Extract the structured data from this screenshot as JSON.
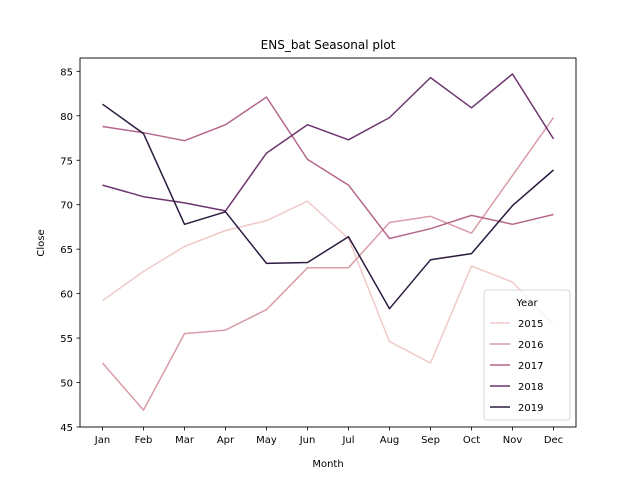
{
  "chart_data": {
    "type": "line",
    "title": "ENS_bat Seasonal plot",
    "xlabel": "Month",
    "ylabel": "Close",
    "categories": [
      "Jan",
      "Feb",
      "Mar",
      "Apr",
      "May",
      "Jun",
      "Jul",
      "Aug",
      "Sep",
      "Oct",
      "Nov",
      "Dec"
    ],
    "ylim": [
      45,
      86.5
    ],
    "yticks": [
      45,
      50,
      55,
      60,
      65,
      70,
      75,
      80,
      85
    ],
    "grid": false,
    "legend": {
      "title": "Year",
      "placement": "lower-right"
    },
    "series": [
      {
        "name": "2015",
        "color": "#efcac8",
        "values": [
          59.2,
          62.5,
          65.3,
          67.1,
          68.2,
          70.4,
          66.2,
          54.6,
          52.2,
          63.1,
          61.3,
          56.5
        ]
      },
      {
        "name": "2016",
        "color": "#d99ca7",
        "values": [
          52.2,
          46.9,
          55.5,
          55.9,
          58.2,
          62.9,
          62.9,
          68.0,
          68.7,
          66.8,
          73.3,
          79.8
        ]
      },
      {
        "name": "2017",
        "color": "#b5678c",
        "values": [
          78.8,
          78.1,
          77.2,
          79.0,
          82.1,
          75.1,
          72.2,
          66.2,
          67.3,
          68.8,
          67.8,
          68.9
        ]
      },
      {
        "name": "2018",
        "color": "#6e3670",
        "values": [
          72.2,
          70.9,
          70.2,
          69.3,
          75.8,
          79.0,
          77.3,
          79.8,
          84.3,
          80.9,
          84.7,
          77.4
        ]
      },
      {
        "name": "2019",
        "color": "#2b1b3e",
        "values": [
          81.3,
          78.0,
          67.8,
          69.2,
          63.4,
          63.5,
          66.4,
          58.3,
          63.8,
          64.5,
          69.9,
          73.9
        ]
      }
    ]
  }
}
